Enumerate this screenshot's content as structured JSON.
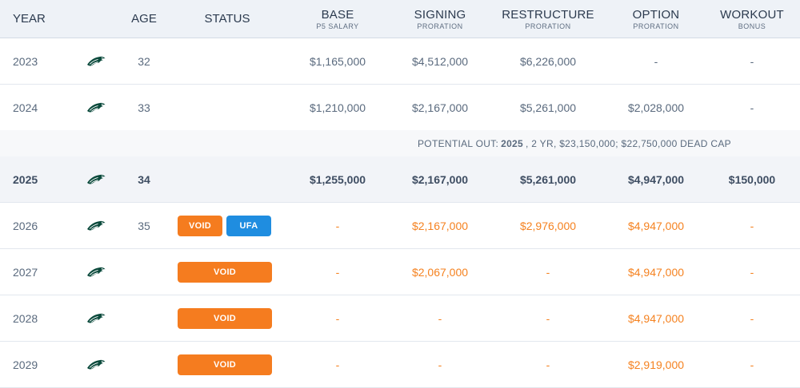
{
  "header": {
    "year": "YEAR",
    "age": "AGE",
    "status": "STATUS",
    "base": {
      "main": "BASE",
      "sub": "P5 SALARY"
    },
    "signing": {
      "main": "SIGNING",
      "sub": "PRORATION"
    },
    "restructure": {
      "main": "RESTRUCTURE",
      "sub": "PRORATION"
    },
    "option": {
      "main": "OPTION",
      "sub": "PRORATION"
    },
    "workout": {
      "main": "WORKOUT",
      "sub": "BONUS"
    }
  },
  "team_icon": "eagles-logo-icon",
  "colors": {
    "future_value": "#f58220",
    "void_badge": "#f57c1f",
    "ufa_badge": "#1f8de0",
    "header_bg": "#eef2f7"
  },
  "rows": [
    {
      "year": "2023",
      "age": "32",
      "status": [],
      "base": "$1,165,000",
      "signing": "$4,512,000",
      "restructure": "$6,226,000",
      "option": "-",
      "workout": "-"
    },
    {
      "year": "2024",
      "age": "33",
      "status": [],
      "base": "$1,210,000",
      "signing": "$2,167,000",
      "restructure": "$5,261,000",
      "option": "$2,028,000",
      "workout": "-"
    },
    {
      "year": "2025",
      "age": "34",
      "status": [],
      "base": "$1,255,000",
      "signing": "$2,167,000",
      "restructure": "$5,261,000",
      "option": "$4,947,000",
      "workout": "$150,000"
    },
    {
      "year": "2026",
      "age": "35",
      "status": [
        "VOID",
        "UFA"
      ],
      "base": "-",
      "signing": "$2,167,000",
      "restructure": "$2,976,000",
      "option": "$4,947,000",
      "workout": "-"
    },
    {
      "year": "2027",
      "age": "",
      "status": [
        "VOID"
      ],
      "base": "-",
      "signing": "$2,067,000",
      "restructure": "-",
      "option": "$4,947,000",
      "workout": "-"
    },
    {
      "year": "2028",
      "age": "",
      "status": [
        "VOID"
      ],
      "base": "-",
      "signing": "-",
      "restructure": "-",
      "option": "$4,947,000",
      "workout": "-"
    },
    {
      "year": "2029",
      "age": "",
      "status": [
        "VOID"
      ],
      "base": "-",
      "signing": "-",
      "restructure": "-",
      "option": "$2,919,000",
      "workout": "-"
    }
  ],
  "potential_out": {
    "prefix": "POTENTIAL OUT:",
    "year": "2025",
    "suffix": ", 2 YR, $23,150,000; $22,750,000 DEAD CAP"
  }
}
